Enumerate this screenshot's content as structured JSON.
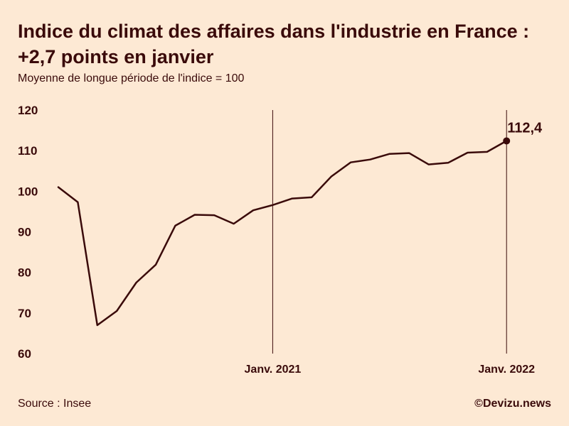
{
  "header": {
    "title_line1": "Indice du climat des affaires dans l'industrie en France :",
    "title_line2": "+2,7 points en janvier",
    "subtitle": "Moyenne de longue période de l'indice = 100"
  },
  "footer": {
    "source": "Source : Insee",
    "credit": "©Devizu.news"
  },
  "colors": {
    "background": "#fde9d4",
    "line": "#3a0a0a",
    "text": "#3a0a0a"
  },
  "chart_data": {
    "type": "line",
    "title": "Indice du climat des affaires dans l'industrie en France : +2,7 points en janvier",
    "subtitle": "Moyenne de longue période de l'indice = 100",
    "x": [
      "2020-02",
      "2020-03",
      "2020-04",
      "2020-05",
      "2020-06",
      "2020-07",
      "2020-08",
      "2020-09",
      "2020-10",
      "2020-11",
      "2020-12",
      "2021-01",
      "2021-02",
      "2021-03",
      "2021-04",
      "2021-05",
      "2021-06",
      "2021-07",
      "2021-08",
      "2021-09",
      "2021-10",
      "2021-11",
      "2021-12",
      "2022-01"
    ],
    "series": [
      {
        "values": [
          101.0,
          97.3,
          67.0,
          70.5,
          77.5,
          81.9,
          91.5,
          94.2,
          94.1,
          92.0,
          95.3,
          96.6,
          98.2,
          98.5,
          103.6,
          107.1,
          107.8,
          109.2,
          109.4,
          106.6,
          107.0,
          109.5,
          109.7,
          112.4
        ]
      }
    ],
    "yticks": [
      120,
      110,
      100,
      90,
      80,
      70,
      60
    ],
    "ylim": [
      60,
      120
    ],
    "x_annotations": [
      {
        "x": "2021-01",
        "label": "Janv. 2021"
      },
      {
        "x": "2022-01",
        "label": "Janv. 2022"
      }
    ],
    "end_label": "112,4",
    "grid": false,
    "legend": "none"
  }
}
